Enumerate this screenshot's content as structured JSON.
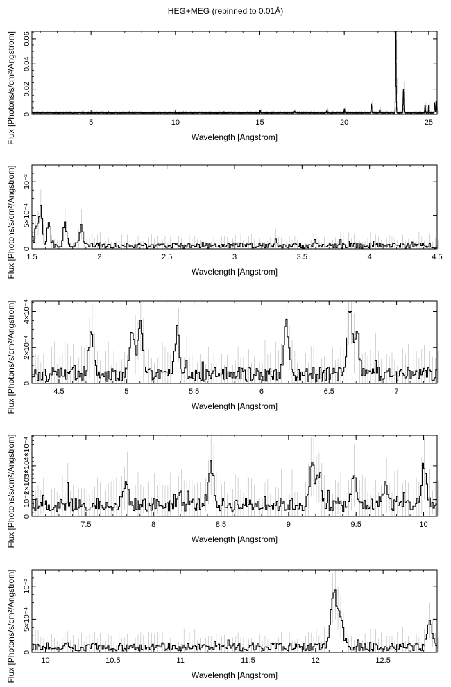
{
  "figure": {
    "title": "HEG+MEG (rebinned to 0.01Å)"
  },
  "chart_data": [
    {
      "type": "line",
      "title": "",
      "xlabel": "Wavelength [Angstrom]",
      "ylabel": "Flux [Photons/s/cm²/Angstrom]",
      "xlim": [
        1.5,
        25.5
      ],
      "ylim": [
        0,
        0.066
      ],
      "xticks": [
        5,
        10,
        15,
        20,
        25
      ],
      "xtick_labels": [
        "5",
        "10",
        "15",
        "20",
        "25"
      ],
      "yticks": [
        0,
        0.02,
        0.04,
        0.06
      ],
      "ytick_labels": [
        "0",
        "0.02",
        "0.04",
        "0.06"
      ],
      "baseline": 0.0012,
      "noise": 0.0003,
      "peaks": [
        [
          15.01,
          0.002
        ],
        [
          17.05,
          0.0015
        ],
        [
          18.97,
          0.0025
        ],
        [
          20.0,
          0.003
        ],
        [
          21.6,
          0.007
        ],
        [
          22.1,
          0.0025
        ],
        [
          23.05,
          0.065
        ],
        [
          23.5,
          0.019
        ],
        [
          24.78,
          0.006
        ],
        [
          25.0,
          0.006
        ],
        [
          25.35,
          0.008
        ],
        [
          25.45,
          0.009
        ]
      ],
      "peak_width": 0.02,
      "step": 0.01,
      "seed": 1
    },
    {
      "type": "line",
      "title": "",
      "xlabel": "Wavelength [Angstrom]",
      "ylabel": "Flux [Photons/s/cm²/Angstrom]",
      "xlim": [
        1.5,
        4.5
      ],
      "ylim": [
        0,
        0.00125
      ],
      "xticks": [
        1.5,
        2,
        2.5,
        3,
        3.5,
        4,
        4.5
      ],
      "xtick_labels": [
        "1.5",
        "2",
        "2.5",
        "3",
        "3.5",
        "4",
        "4.5"
      ],
      "yticks": [
        0,
        0.0005,
        0.001
      ],
      "ytick_labels": [
        "0",
        "5×10⁻⁴",
        "10⁻³"
      ],
      "baseline": 5e-05,
      "noise": 4e-05,
      "peaks": [
        [
          1.53,
          0.0003
        ],
        [
          1.56,
          0.00055
        ],
        [
          1.62,
          0.00035
        ],
        [
          1.74,
          0.00035
        ],
        [
          1.86,
          0.00032
        ]
      ],
      "peak_width": 0.012,
      "step": 0.01,
      "seed": 2
    },
    {
      "type": "line",
      "title": "",
      "xlabel": "Wavelength [Angstrom]",
      "ylabel": "Flux [Photons/s/cm²/Angstrom]",
      "xlim": [
        4.3,
        7.3
      ],
      "ylim": [
        0,
        0.00046
      ],
      "xticks": [
        4.5,
        5,
        5.5,
        6,
        6.5,
        7
      ],
      "xtick_labels": [
        "4.5",
        "5",
        "5.5",
        "6",
        "6.5",
        "7"
      ],
      "yticks": [
        0,
        0.0002,
        0.0004
      ],
      "ytick_labels": [
        "0",
        "2×10⁻⁴",
        "4×10⁻⁴"
      ],
      "baseline": 5e-05,
      "noise": 4e-05,
      "peaks": [
        [
          4.73,
          0.00022
        ],
        [
          5.04,
          0.00025
        ],
        [
          5.1,
          0.00028
        ],
        [
          5.37,
          0.00024
        ],
        [
          6.18,
          0.00028
        ],
        [
          6.65,
          0.00036
        ],
        [
          6.7,
          0.00022
        ]
      ],
      "peak_width": 0.018,
      "step": 0.01,
      "seed": 3
    },
    {
      "type": "line",
      "title": "",
      "xlabel": "Wavelength [Angstrom]",
      "ylabel": "Flux [Photons/s/cm²/Angstrom]",
      "xlim": [
        7.1,
        10.1
      ],
      "ylim": [
        0,
        0.00048
      ],
      "xticks": [
        7.5,
        8,
        8.5,
        9,
        9.5,
        10
      ],
      "xtick_labels": [
        "7.5",
        "8",
        "8.5",
        "9",
        "9.5",
        "10"
      ],
      "yticks": [
        0,
        0.0001,
        0.0002,
        0.0003,
        0.0004
      ],
      "ytick_labels": [
        "0",
        "10⁻⁴",
        "2×10⁻⁴",
        "3×10⁻⁴",
        "4×10⁻⁴"
      ],
      "baseline": 7e-05,
      "noise": 4e-05,
      "peaks": [
        [
          7.79,
          0.00013
        ],
        [
          8.42,
          0.00025
        ],
        [
          9.17,
          0.00022
        ],
        [
          9.22,
          0.00018
        ],
        [
          9.48,
          0.00015
        ],
        [
          9.71,
          0.00012
        ],
        [
          10.0,
          0.00022
        ]
      ],
      "peak_width": 0.018,
      "step": 0.01,
      "seed": 4
    },
    {
      "type": "line",
      "title": "",
      "xlabel": "Wavelength [Angstrom]",
      "ylabel": "Flux [Photons/s/cm²/Angstrom]",
      "xlim": [
        9.9,
        12.9
      ],
      "ylim": [
        0,
        0.00125
      ],
      "xticks": [
        10,
        10.5,
        11,
        11.5,
        12,
        12.5
      ],
      "xtick_labels": [
        "10",
        "10.5",
        "11",
        "11.5",
        "12",
        "12.5"
      ],
      "yticks": [
        0,
        0.0005,
        0.001
      ],
      "ytick_labels": [
        "0",
        "5×10⁻⁴",
        "10⁻³"
      ],
      "baseline": 8e-05,
      "noise": 6e-05,
      "peaks": [
        [
          12.13,
          0.00085
        ],
        [
          12.18,
          0.00045
        ],
        [
          12.84,
          0.00035
        ]
      ],
      "peak_width": 0.02,
      "step": 0.01,
      "seed": 5
    }
  ]
}
